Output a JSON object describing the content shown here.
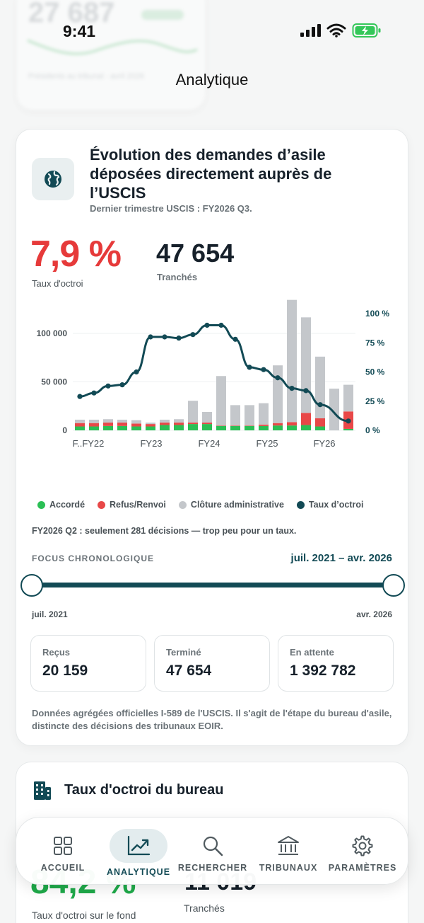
{
  "status_bar": {
    "time": "9:41"
  },
  "background": {
    "number": "27 687",
    "caption": "Présidents au tribunal · avril 2026"
  },
  "page_title": "Analytique",
  "card": {
    "icon": "globe-icon",
    "title": "Évolution des demandes d’asile déposées directement auprès de l’USCIS",
    "subtitle": "Dernier trimestre USCIS : FY2026 Q3.",
    "grant_rate": {
      "value": "7,9 %",
      "label": "Taux d'octroi"
    },
    "decisions": {
      "value": "47 654",
      "label": "Tranchés"
    },
    "note": "FY2026 Q2 : seulement 281 décisions — trop peu pour un taux.",
    "focus": {
      "label": "FOCUS CHRONOLOGIQUE",
      "range": "juil. 2021 – avr. 2026",
      "min": "juil. 2021",
      "max": "avr. 2026"
    },
    "stats": [
      {
        "label": "Reçus",
        "value": "20 159"
      },
      {
        "label": "Terminé",
        "value": "47 654"
      },
      {
        "label": "En attente",
        "value": "1 392 782"
      }
    ],
    "footnote": "Données agrégées officielles I-589 de l'USCIS. Il s'agit de l'étape du bureau d'asile, distincte des décisions des tribunaux EOIR."
  },
  "chart_data": {
    "type": "bar",
    "x_ticks": [
      "F..FY22",
      "FY23",
      "FY24",
      "FY25",
      "FY26"
    ],
    "y_left_ticks": [
      "0",
      "50 000",
      "100 000"
    ],
    "y_right_ticks": [
      "0 %",
      "25 %",
      "50 %",
      "75 %",
      "100 %"
    ],
    "ylim_left": [
      0,
      135000
    ],
    "ylim_right": [
      0,
      100
    ],
    "legend": [
      {
        "name": "Accordé",
        "color": "#2bbf55"
      },
      {
        "name": "Refus/Renvoi",
        "color": "#e84848"
      },
      {
        "name": "Clôture administrative",
        "color": "#c4c7cb"
      },
      {
        "name": "Taux d’octroi",
        "color": "#124a55"
      }
    ],
    "series": [
      {
        "name": "Accordé",
        "values": [
          4000,
          4000,
          4500,
          4500,
          4000,
          4000,
          5500,
          5500,
          6500,
          6500,
          4500,
          4500,
          4500,
          4500,
          5000,
          5000,
          5500,
          4000,
          0,
          1500
        ]
      },
      {
        "name": "Refus/Renvoi",
        "values": [
          3500,
          3500,
          3500,
          3500,
          3000,
          2500,
          2500,
          2500,
          1500,
          1500,
          500,
          500,
          500,
          1500,
          2500,
          3500,
          12500,
          8500,
          0,
          18000
        ]
      },
      {
        "name": "Clôture administrative",
        "values": [
          3500,
          3500,
          3500,
          3000,
          3500,
          1500,
          3000,
          3500,
          22500,
          11000,
          51000,
          21000,
          21000,
          22000,
          59500,
          126000,
          98500,
          63500,
          43000,
          27500
        ]
      },
      {
        "name": "Taux d’octroi",
        "axis": "right",
        "values": [
          29,
          32,
          38,
          39,
          50,
          80,
          80,
          79,
          82,
          90,
          90,
          78,
          54,
          52,
          45,
          36,
          34,
          22,
          null,
          8
        ]
      }
    ]
  },
  "card2": {
    "title": "Taux d'octroi du bureau",
    "rate": "84,2 %",
    "rate_label": "Taux d'octroi sur le fond",
    "decisions": "11 019",
    "decisions_label": "Tranchés"
  },
  "tabbar": [
    {
      "label": "ACCUEIL",
      "icon": "grid-icon"
    },
    {
      "label": "ANALYTIQUE",
      "icon": "chart-icon",
      "active": true
    },
    {
      "label": "RECHERCHER",
      "icon": "search-icon"
    },
    {
      "label": "TRIBUNAUX",
      "icon": "bank-icon"
    },
    {
      "label": "PARAMÈTRES",
      "icon": "gear-icon"
    }
  ]
}
